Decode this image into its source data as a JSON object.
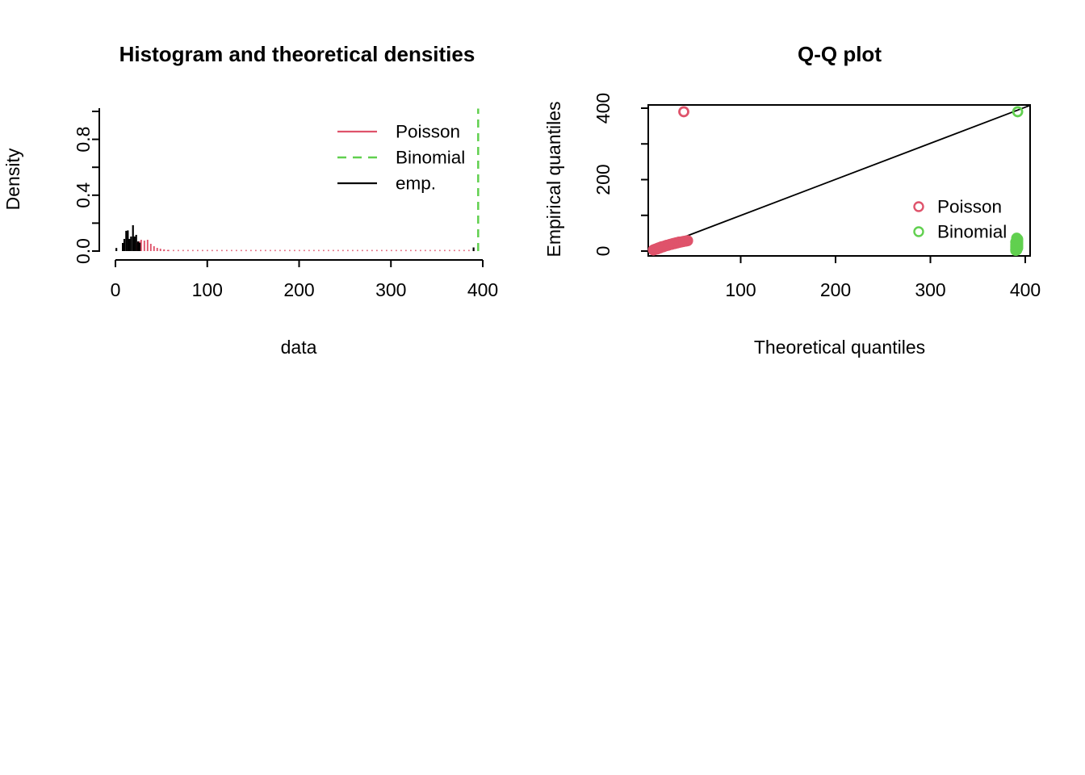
{
  "figure": {
    "background": "#FFFFFF",
    "text_color": "#000000"
  },
  "chart_data": [
    {
      "type": "bar",
      "title": "Histogram and theoretical densities",
      "xlabel": "data",
      "ylabel": "Density",
      "xlim": [
        0,
        400
      ],
      "ylim": [
        0,
        1.0
      ],
      "grid": false,
      "x_ticks": {
        "values": [
          0,
          100,
          200,
          300,
          400
        ],
        "labels": [
          "0",
          "100",
          "200",
          "300",
          "400"
        ]
      },
      "y_ticks": {
        "values": [
          0,
          0.2,
          0.4,
          0.6,
          0.8,
          1.0
        ],
        "labeled": [
          {
            "value": 0,
            "label": "0.0"
          },
          {
            "value": 0.4,
            "label": "0.4"
          },
          {
            "value": 0.8,
            "label": "0.8"
          }
        ]
      },
      "legend_position": "top-right-inside",
      "series": [
        {
          "name": "Poisson",
          "color": "#DF536B",
          "line_style": "solid",
          "spikes": [
            [
              20,
              0.045
            ],
            [
              23.5,
              0.06
            ],
            [
              26,
              0.07
            ],
            [
              28,
              0.081
            ],
            [
              31.5,
              0.075
            ],
            [
              35,
              0.081
            ],
            [
              38.5,
              0.052
            ],
            [
              42,
              0.035
            ],
            [
              45.5,
              0.023
            ],
            [
              49,
              0.017
            ],
            [
              53,
              0.012
            ],
            [
              57,
              0.008
            ]
          ],
          "zero_tail": {
            "x_from": 52,
            "x_to": 392,
            "density": 0.004,
            "style": "dotted"
          }
        },
        {
          "name": "Binomial",
          "color": "#61D04F",
          "line_style": "dashed",
          "vline": {
            "x": 395,
            "density_top": 1.02
          }
        },
        {
          "name": "emp.",
          "color": "#000000",
          "line_style": "solid",
          "spikes": [
            [
              1,
              0.022
            ],
            [
              8,
              0.058
            ],
            [
              9.7,
              0.087
            ],
            [
              11.7,
              0.145
            ],
            [
              13.5,
              0.148
            ],
            [
              15.2,
              0.087
            ],
            [
              17,
              0.104
            ],
            [
              19.1,
              0.185
            ],
            [
              20.8,
              0.104
            ],
            [
              22.6,
              0.116
            ],
            [
              24.6,
              0.069
            ],
            [
              26.4,
              0.06
            ],
            [
              390,
              0.026
            ]
          ]
        }
      ]
    },
    {
      "type": "scatter",
      "title": "Q-Q plot",
      "xlabel": "Theoretical quantiles",
      "ylabel": "Empirical quantiles",
      "xlim": [
        0,
        420
      ],
      "ylim": [
        0,
        420
      ],
      "grid": false,
      "identity_line": true,
      "x_ticks": {
        "values": [
          100,
          200,
          300,
          400
        ],
        "labels": [
          "100",
          "200",
          "300",
          "400"
        ]
      },
      "y_ticks": {
        "values": [
          0,
          100,
          200,
          300,
          400
        ],
        "labeled": [
          {
            "value": 0,
            "label": "0"
          },
          {
            "value": 200,
            "label": "200"
          },
          {
            "value": 400,
            "label": "400"
          }
        ]
      },
      "legend_position": "right-middle-inside",
      "series": [
        {
          "name": "Poisson",
          "color": "#DF536B",
          "marker": "open-circle",
          "points": [
            [
              8,
              3
            ],
            [
              9,
              4
            ],
            [
              10,
              5
            ],
            [
              11,
              6
            ],
            [
              12,
              6
            ],
            [
              12,
              7
            ],
            [
              13,
              8
            ],
            [
              14,
              9
            ],
            [
              15,
              9
            ],
            [
              15,
              10
            ],
            [
              16,
              11
            ],
            [
              17,
              12
            ],
            [
              18,
              12
            ],
            [
              19,
              13
            ],
            [
              20,
              14
            ],
            [
              21,
              15
            ],
            [
              22,
              16
            ],
            [
              23,
              16
            ],
            [
              24,
              17
            ],
            [
              25,
              18
            ],
            [
              26,
              19
            ],
            [
              27,
              19
            ],
            [
              28,
              20
            ],
            [
              29,
              21
            ],
            [
              30,
              21
            ],
            [
              31,
              22
            ],
            [
              32,
              23
            ],
            [
              33,
              23
            ],
            [
              34,
              24
            ],
            [
              35,
              25
            ],
            [
              36,
              25
            ],
            [
              38,
              26
            ],
            [
              40,
              27
            ],
            [
              42,
              28
            ],
            [
              44,
              29
            ],
            [
              40,
              390
            ]
          ]
        },
        {
          "name": "Binomial",
          "color": "#61D04F",
          "marker": "open-circle",
          "points": [
            [
              390,
              2
            ],
            [
              391,
              3
            ],
            [
              390,
              5
            ],
            [
              391,
              7
            ],
            [
              392,
              9
            ],
            [
              390,
              11
            ],
            [
              391,
              13
            ],
            [
              392,
              15
            ],
            [
              390,
              17
            ],
            [
              391,
              19
            ],
            [
              392,
              21
            ],
            [
              391,
              23
            ],
            [
              390,
              25
            ],
            [
              392,
              27
            ],
            [
              391,
              30
            ],
            [
              392,
              33
            ],
            [
              391,
              36
            ],
            [
              392,
              390
            ]
          ]
        }
      ]
    }
  ]
}
